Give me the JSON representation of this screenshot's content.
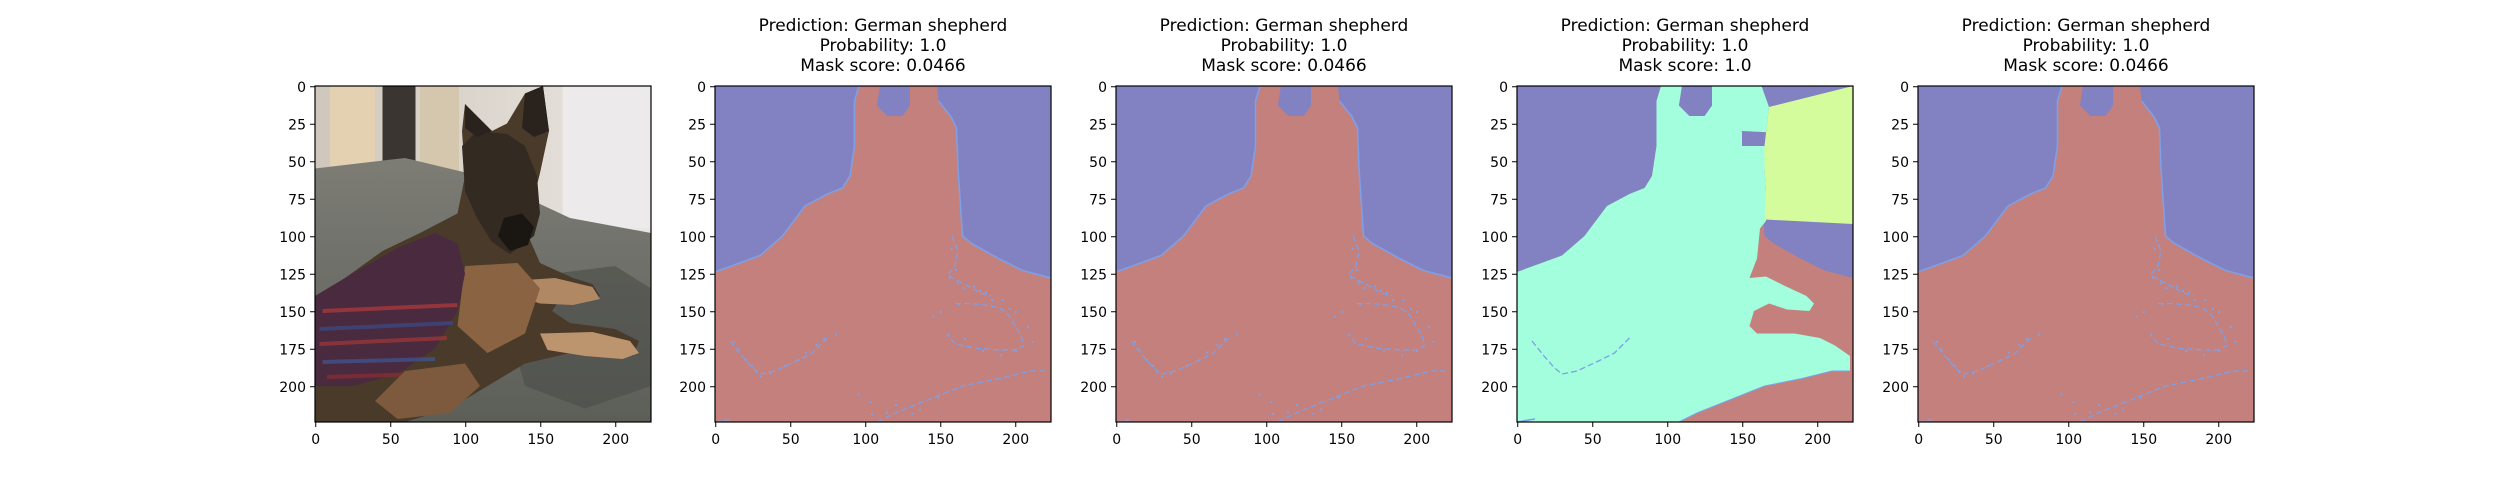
{
  "figure": {
    "panels": [
      {
        "kind": "photo",
        "title_lines": [
          "",
          "",
          ""
        ],
        "description": ""
      },
      {
        "kind": "mask",
        "variant": "a",
        "title_lines": [
          "Prediction: German shepherd",
          "Probability: 1.0",
          "Mask score: 0.0466"
        ]
      },
      {
        "kind": "mask",
        "variant": "a",
        "title_lines": [
          "Prediction: German shepherd",
          "Probability: 1.0",
          "Mask score: 0.0466"
        ]
      },
      {
        "kind": "mask",
        "variant": "b",
        "title_lines": [
          "Prediction: German shepherd",
          "Probability: 1.0",
          "Mask score: 1.0"
        ]
      },
      {
        "kind": "mask",
        "variant": "a",
        "title_lines": [
          "Prediction: German shepherd",
          "Probability: 1.0",
          "Mask score: 0.0466"
        ]
      }
    ],
    "x_ticks": [
      "0",
      "50",
      "100",
      "150",
      "200"
    ],
    "y_ticks": [
      "0",
      "25",
      "50",
      "75",
      "100",
      "125",
      "150",
      "175",
      "200"
    ],
    "colors": {
      "background_region": "#8282c2",
      "dog_region_a": "#c3807d",
      "dog_region_b": "#a2fedc",
      "door_region_b": "#d5fc9c",
      "edge_line": "#7f9fe6"
    }
  }
}
